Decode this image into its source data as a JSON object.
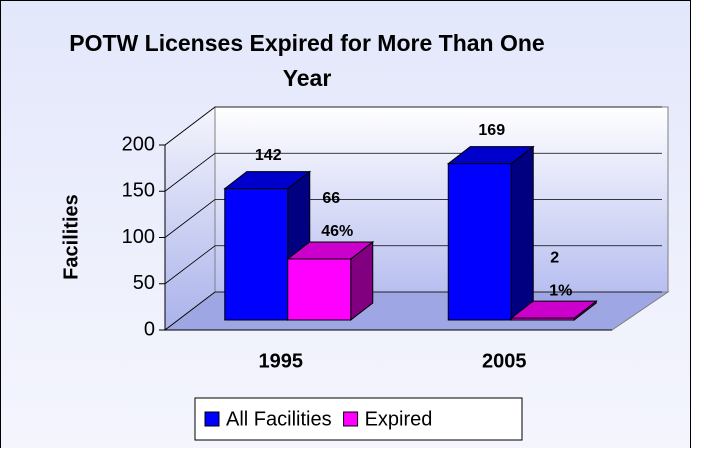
{
  "chart_data": {
    "type": "bar3d",
    "title": "POTW Licenses Expired for More Than One Year",
    "y_label": "Facilities",
    "categories": [
      "1995",
      "2005"
    ],
    "series": [
      {
        "name": "All Facilities",
        "color": "#0000ff",
        "values": [
          142,
          169
        ]
      },
      {
        "name": "Expired",
        "color": "#ff00ff",
        "values": [
          66,
          2
        ],
        "percent_labels": [
          "46%",
          "1%"
        ]
      }
    ],
    "ylim": [
      0,
      200
    ],
    "yticks": [
      0,
      50,
      100,
      150,
      200
    ],
    "grid": true,
    "legend": "bottom"
  }
}
